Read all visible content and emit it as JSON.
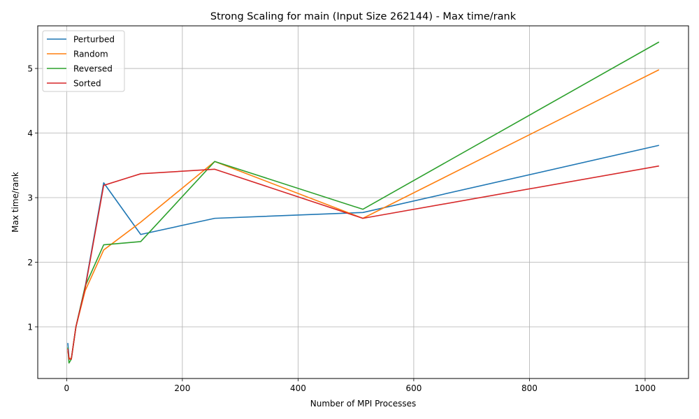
{
  "chart_data": {
    "type": "line",
    "title": "Strong Scaling for main (Input Size 262144) - Max time/rank",
    "xlabel": "Number of MPI Processes",
    "ylabel": "Max time/rank",
    "xlim": [
      -50,
      1075
    ],
    "ylim": [
      0.2,
      5.66
    ],
    "xticks": [
      0,
      200,
      400,
      600,
      800,
      1000
    ],
    "yticks": [
      1,
      2,
      3,
      4,
      5
    ],
    "grid": true,
    "legend_position": "upper-left",
    "x": [
      2,
      4,
      8,
      16,
      32,
      64,
      128,
      256,
      512,
      1024
    ],
    "series": [
      {
        "name": "Perturbed",
        "color": "#1f77b4",
        "values": [
          0.75,
          0.52,
          0.5,
          1.0,
          1.62,
          3.23,
          2.43,
          2.68,
          2.77,
          3.81
        ]
      },
      {
        "name": "Random",
        "color": "#ff7f0e",
        "values": [
          0.62,
          0.52,
          0.5,
          1.0,
          1.56,
          2.19,
          2.62,
          3.56,
          2.68,
          4.98
        ]
      },
      {
        "name": "Reversed",
        "color": "#2ca02c",
        "values": [
          0.68,
          0.44,
          0.5,
          1.0,
          1.63,
          2.27,
          2.32,
          3.56,
          2.82,
          5.41
        ]
      },
      {
        "name": "Sorted",
        "color": "#d62728",
        "values": [
          0.66,
          0.5,
          0.5,
          1.0,
          1.6,
          3.19,
          3.37,
          3.44,
          2.68,
          3.49
        ]
      }
    ]
  }
}
